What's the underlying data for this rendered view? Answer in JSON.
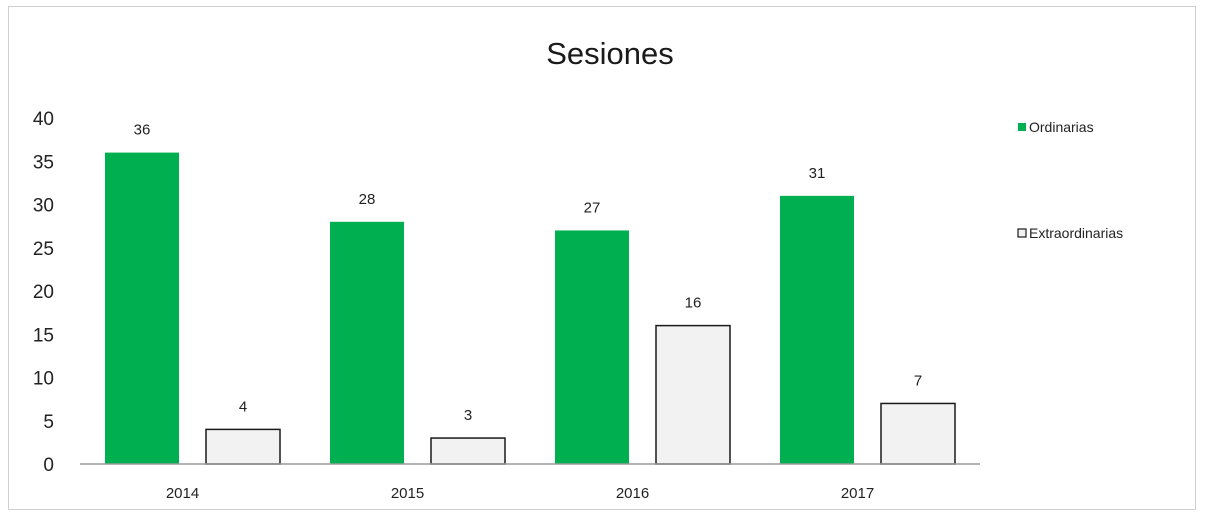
{
  "chart_data": {
    "type": "bar",
    "title": "Sesiones",
    "xlabel": "",
    "ylabel": "",
    "categories": [
      "2014",
      "2015",
      "2016",
      "2017"
    ],
    "series": [
      {
        "name": "Ordinarias",
        "values": [
          36,
          28,
          27,
          31
        ],
        "color": "#00b050"
      },
      {
        "name": "Extraordinarias",
        "values": [
          4,
          3,
          16,
          7
        ],
        "color": "#f2f2f2",
        "stroke": "#1a1a1a"
      }
    ],
    "ylim": [
      0,
      40
    ],
    "yticks": [
      "0",
      "5",
      "10",
      "15",
      "20",
      "25",
      "30",
      "35",
      "40"
    ],
    "grid": false,
    "legend": "right"
  }
}
